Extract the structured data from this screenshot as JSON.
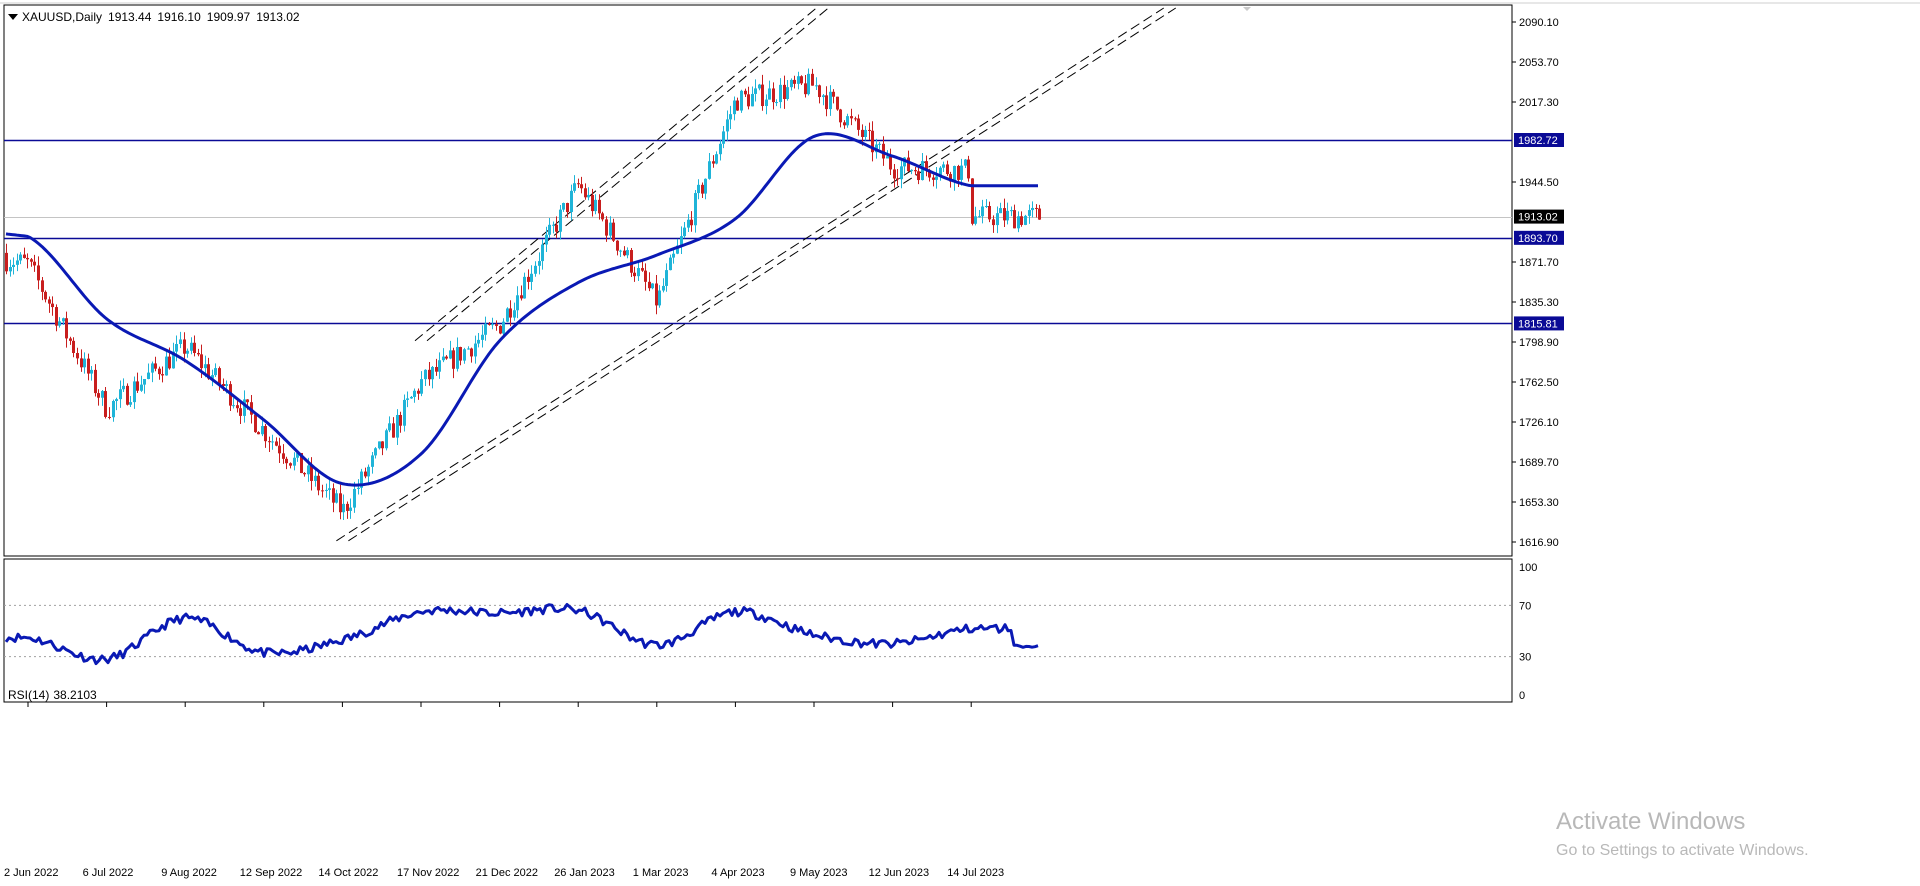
{
  "header": {
    "symbol": "XAUUSD,Daily",
    "open": "1913.44",
    "high": "1916.10",
    "low": "1909.97",
    "close": "1913.02"
  },
  "rsi_header": {
    "name": "RSI(14)",
    "value": "38.2103"
  },
  "watermark": {
    "title": "Activate Windows",
    "subtitle": "Go to Settings to activate Windows."
  },
  "colors": {
    "background": "#ffffff",
    "bull_candle": "#1fb4d8",
    "bear_candle": "#c81e1e",
    "moving_average": "#0a19b4",
    "horizontal_level": "#0a0a96",
    "rsi_line": "#0a19b4",
    "price_tag_bg": "#0a0a96",
    "close_tag_bg": "#000000"
  },
  "chart_data": [
    {
      "type": "candlestick",
      "symbol": "XAUUSD",
      "timeframe": "Daily",
      "x_tick_labels": [
        "2 Jun 2022",
        "6 Jul 2022",
        "9 Aug 2022",
        "12 Sep 2022",
        "14 Oct 2022",
        "17 Nov 2022",
        "21 Dec 2022",
        "26 Jan 2023",
        "1 Mar 2023",
        "4 Apr 2023",
        "9 May 2023",
        "12 Jun 2023",
        "14 Jul 2023"
      ],
      "y_tick_labels": [
        "2090.10",
        "2053.70",
        "2017.30",
        "1944.50",
        "1871.70",
        "1835.30",
        "1798.90",
        "1762.50",
        "1726.10",
        "1689.70",
        "1653.30",
        "1616.90"
      ],
      "ylim": [
        1610.0,
        2101.0
      ],
      "horizontal_levels": [
        {
          "value": 1982.72,
          "label": "1982.72"
        },
        {
          "value": 1893.7,
          "label": "1893.70"
        },
        {
          "value": 1815.81,
          "label": "1815.81"
        }
      ],
      "current_price": {
        "value": 1913.02,
        "label": "1913.02"
      },
      "moving_average": [
        {
          "date": "2 Jun 2022",
          "value": 1895
        },
        {
          "date": "6 Jul 2022",
          "value": 1820
        },
        {
          "date": "9 Aug 2022",
          "value": 1782
        },
        {
          "date": "12 Sep 2022",
          "value": 1728
        },
        {
          "date": "14 Oct 2022",
          "value": 1670
        },
        {
          "date": "17 Nov 2022",
          "value": 1697
        },
        {
          "date": "21 Dec 2022",
          "value": 1800
        },
        {
          "date": "26 Jan 2023",
          "value": 1853
        },
        {
          "date": "1 Mar 2023",
          "value": 1878
        },
        {
          "date": "4 Apr 2023",
          "value": 1911
        },
        {
          "date": "9 May 2023",
          "value": 1986
        },
        {
          "date": "12 Jun 2023",
          "value": 1968
        },
        {
          "date": "14 Jul 2023",
          "value": 1941
        }
      ],
      "price_path": [
        {
          "date": "2 Jun 2022",
          "close": 1870
        },
        {
          "date": "6 Jul 2022",
          "close": 1738
        },
        {
          "date": "9 Aug 2022",
          "close": 1795
        },
        {
          "date": "12 Sep 2022",
          "close": 1718
        },
        {
          "date": "14 Oct 2022",
          "close": 1645
        },
        {
          "date": "17 Nov 2022",
          "close": 1762
        },
        {
          "date": "21 Dec 2022",
          "close": 1815
        },
        {
          "date": "26 Jan 2023",
          "close": 1942
        },
        {
          "date": "1 Mar 2023",
          "close": 1835
        },
        {
          "date": "4 Apr 2023",
          "close": 2019
        },
        {
          "date": "9 May 2023",
          "close": 2033
        },
        {
          "date": "12 Jun 2023",
          "close": 1958
        },
        {
          "date": "14 Jul 2023",
          "close": 1955
        }
      ],
      "channels": [
        {
          "name": "upper channel",
          "from": {
            "date": "17 Nov 2022",
            "value": 1800
          },
          "to": {
            "date": "9 May 2023",
            "value": 2101
          }
        },
        {
          "name": "lower channel",
          "from": {
            "date": "14 Oct 2022",
            "value": 1618
          },
          "to": {
            "date": "14 Jul 2023",
            "value": 1990
          }
        }
      ]
    },
    {
      "type": "line",
      "name": "RSI(14)",
      "current_value": 38.2103,
      "y_tick_labels": [
        "100",
        "70",
        "30",
        "0"
      ],
      "ylim": [
        0,
        100
      ],
      "guide_levels": [
        70,
        30
      ],
      "series": [
        {
          "date": "2 Jun 2022",
          "value": 45
        },
        {
          "date": "6 Jul 2022",
          "value": 28
        },
        {
          "date": "9 Aug 2022",
          "value": 60
        },
        {
          "date": "12 Sep 2022",
          "value": 33
        },
        {
          "date": "14 Oct 2022",
          "value": 43
        },
        {
          "date": "17 Nov 2022",
          "value": 65
        },
        {
          "date": "21 Dec 2022",
          "value": 64
        },
        {
          "date": "26 Jan 2023",
          "value": 66
        },
        {
          "date": "1 Mar 2023",
          "value": 39
        },
        {
          "date": "4 Apr 2023",
          "value": 65
        },
        {
          "date": "9 May 2023",
          "value": 47
        },
        {
          "date": "12 Jun 2023",
          "value": 40
        },
        {
          "date": "14 Jul 2023",
          "value": 52
        }
      ]
    }
  ]
}
